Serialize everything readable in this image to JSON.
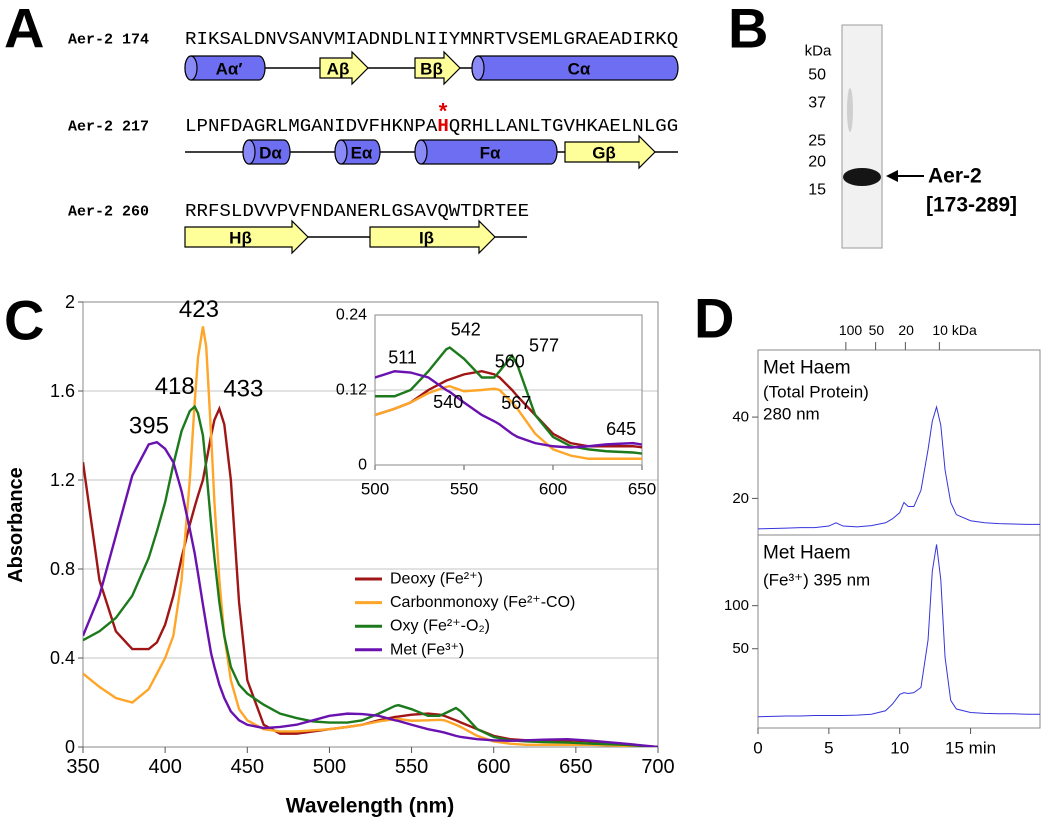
{
  "panels": [
    "A",
    "B",
    "C",
    "D"
  ],
  "sequence": {
    "rows": [
      {
        "name": "Aer-2 174",
        "residues": [
          "RIKSALDNVSANVMIADNDLNIIYMNRTVSEMLGRAEADIRKQ"
        ],
        "elements": [
          {
            "label": "Aα′",
            "kind": "helix"
          },
          {
            "label": "Aβ",
            "kind": "strand"
          },
          {
            "label": "Bβ",
            "kind": "strand"
          },
          {
            "label": "Cα",
            "kind": "helix"
          }
        ]
      },
      {
        "name": "Aer-2 217",
        "residues": [
          "LPNFDAGRLMGANIDVFHKNPA",
          "H",
          "QRHLLANLTGVHKAELNLGG"
        ],
        "mark": "*",
        "highlight_color": "#e00000",
        "elements": [
          {
            "label": "Dα",
            "kind": "helix"
          },
          {
            "label": "Eα",
            "kind": "helix"
          },
          {
            "label": "Fα",
            "kind": "helix"
          },
          {
            "label": "Gβ",
            "kind": "strand"
          }
        ]
      },
      {
        "name": "Aer-2 260",
        "residues": [
          "RRFSLDVVPVFNDANERLGSAVQWTDRTEE"
        ],
        "elements": [
          {
            "label": "Hβ",
            "kind": "strand"
          },
          {
            "label": "Iβ",
            "kind": "strand"
          }
        ]
      }
    ]
  },
  "gel": {
    "unit": "kDa",
    "markers": [
      50,
      37,
      25,
      20,
      15
    ],
    "band_name": "Aer-2",
    "band_range": "[173-289]"
  },
  "chart_data": [
    {
      "type": "line",
      "x_label": "Wavelength (nm)",
      "y_label": "Absorbance",
      "grid": true,
      "x": [
        350,
        360,
        370,
        380,
        390,
        395,
        400,
        405,
        410,
        415,
        418,
        420,
        423,
        425,
        428,
        430,
        433,
        436,
        440,
        445,
        450,
        460,
        470,
        480,
        490,
        500,
        511,
        520,
        530,
        540,
        542,
        550,
        560,
        567,
        570,
        577,
        580,
        590,
        600,
        610,
        620,
        630,
        645,
        660,
        680,
        700
      ],
      "series": [
        {
          "name": "Deoxy (Fe²⁺)",
          "color": "#a01515",
          "values": [
            1.28,
            0.75,
            0.52,
            0.44,
            0.44,
            0.47,
            0.55,
            0.68,
            0.85,
            1.0,
            1.08,
            1.13,
            1.2,
            1.28,
            1.4,
            1.47,
            1.52,
            1.45,
            1.2,
            0.65,
            0.3,
            0.1,
            0.06,
            0.06,
            0.07,
            0.08,
            0.09,
            0.1,
            0.12,
            0.135,
            0.137,
            0.145,
            0.15,
            0.145,
            0.14,
            0.12,
            0.11,
            0.08,
            0.05,
            0.035,
            0.03,
            0.03,
            0.03,
            0.025,
            0.01,
            0
          ]
        },
        {
          "name": "Carbonmonoxy (Fe²⁺-CO)",
          "color": "#ffa528",
          "values": [
            0.33,
            0.27,
            0.22,
            0.2,
            0.26,
            0.33,
            0.4,
            0.5,
            0.75,
            1.2,
            1.55,
            1.75,
            1.89,
            1.8,
            1.4,
            1.1,
            0.75,
            0.5,
            0.3,
            0.17,
            0.12,
            0.08,
            0.07,
            0.07,
            0.075,
            0.08,
            0.09,
            0.1,
            0.115,
            0.125,
            0.126,
            0.118,
            0.12,
            0.122,
            0.12,
            0.1,
            0.09,
            0.05,
            0.025,
            0.015,
            0.01,
            0.01,
            0.01,
            0.01,
            0.005,
            0
          ]
        },
        {
          "name": "Oxy (Fe²⁺-O₂)",
          "color": "#1c7a1c",
          "values": [
            0.48,
            0.52,
            0.58,
            0.68,
            0.85,
            0.97,
            1.1,
            1.27,
            1.42,
            1.51,
            1.53,
            1.5,
            1.4,
            1.25,
            1.0,
            0.85,
            0.65,
            0.5,
            0.36,
            0.28,
            0.24,
            0.19,
            0.15,
            0.13,
            0.115,
            0.11,
            0.11,
            0.12,
            0.15,
            0.185,
            0.188,
            0.17,
            0.14,
            0.14,
            0.15,
            0.175,
            0.16,
            0.08,
            0.045,
            0.03,
            0.025,
            0.022,
            0.02,
            0.015,
            0.01,
            0
          ]
        },
        {
          "name": "Met (Fe³⁺)",
          "color": "#6a12b0",
          "values": [
            0.5,
            0.68,
            0.95,
            1.22,
            1.36,
            1.37,
            1.34,
            1.28,
            1.15,
            0.98,
            0.87,
            0.78,
            0.64,
            0.55,
            0.42,
            0.36,
            0.28,
            0.22,
            0.16,
            0.12,
            0.1,
            0.085,
            0.09,
            0.1,
            0.12,
            0.14,
            0.15,
            0.148,
            0.14,
            0.12,
            0.117,
            0.1,
            0.08,
            0.07,
            0.065,
            0.05,
            0.045,
            0.035,
            0.03,
            0.028,
            0.03,
            0.033,
            0.035,
            0.028,
            0.015,
            0
          ]
        }
      ],
      "xlim": [
        350,
        700
      ],
      "xticks": [
        350,
        400,
        450,
        500,
        550,
        600,
        650,
        700
      ],
      "ylim": [
        0,
        2
      ],
      "yticks": [
        0,
        0.4,
        0.8,
        1.2,
        1.6,
        2
      ],
      "annotations": [
        {
          "x": 423,
          "series": 1
        },
        {
          "x": 418,
          "series": 2
        },
        {
          "x": 433,
          "series": 0
        },
        {
          "x": 395,
          "series": 3
        }
      ],
      "inset": {
        "xlim": [
          500,
          650
        ],
        "xticks": [
          500,
          550,
          600,
          650
        ],
        "ylim": [
          0,
          0.24
        ],
        "yticks": [
          0,
          0.12,
          0.24
        ],
        "annotations": [
          {
            "x": 511,
            "series": 3
          },
          {
            "x": 542,
            "series": 2
          },
          {
            "x": 560,
            "series": 0
          },
          {
            "x": 577,
            "series": 2
          },
          {
            "x": 540,
            "series": 1
          },
          {
            "x": 567,
            "series": 1
          },
          {
            "x": 645,
            "series": 3
          }
        ]
      }
    },
    {
      "type": "line",
      "texts": [
        "Met Haem",
        "(Total Protein)",
        "280 nm"
      ],
      "x": [
        0,
        1,
        2,
        3,
        4,
        5,
        5.5,
        6,
        7,
        8,
        9,
        9.5,
        10,
        10.3,
        10.6,
        11,
        11.5,
        12,
        12.3,
        12.6,
        12.9,
        13.2,
        13.6,
        14,
        15,
        16,
        17,
        18,
        19,
        19.9
      ],
      "series": [
        {
          "color": "#3535dd",
          "values": [
            12.5,
            12.6,
            12.7,
            12.8,
            12.8,
            13.2,
            14.0,
            13.2,
            13.0,
            13.3,
            14,
            15,
            16.5,
            19,
            18,
            18,
            22,
            32,
            39,
            42.5,
            38,
            27,
            19,
            16,
            14.5,
            14,
            13.8,
            13.7,
            13.6,
            13.6
          ]
        }
      ],
      "xlim": [
        0,
        19.9
      ],
      "ylim": [
        11,
        56.5
      ],
      "yticks": [
        20,
        40
      ],
      "x2ticks": [
        {
          "value": 6.2,
          "label": "100"
        },
        {
          "value": 8.3,
          "label": "50"
        },
        {
          "value": 10.4,
          "label": "20"
        },
        {
          "value": 12.8,
          "label": "10 kDa"
        }
      ]
    },
    {
      "type": "line",
      "texts": [
        "Met Haem",
        "(Fe³⁺) 395 nm"
      ],
      "x": [
        0,
        1,
        2,
        3,
        4,
        5,
        5.5,
        6,
        7,
        8,
        9,
        9.5,
        10,
        10.3,
        10.6,
        11,
        11.5,
        12,
        12.3,
        12.6,
        12.9,
        13.2,
        13.6,
        14,
        15,
        16,
        17,
        18,
        19,
        19.9
      ],
      "series": [
        {
          "color": "#3535dd",
          "values": [
            -29,
            -28.5,
            -28,
            -28,
            -27.5,
            -27.5,
            -27.5,
            -27.5,
            -27,
            -26,
            -22,
            -14,
            -3,
            -1,
            -2,
            -1,
            5,
            60,
            140,
            171,
            130,
            40,
            -10,
            -20,
            -24,
            -25,
            -25.5,
            -25.5,
            -26,
            -26
          ]
        }
      ],
      "xlim": [
        0,
        19.9
      ],
      "ylim": [
        -42,
        182
      ],
      "yticks": [
        50,
        100
      ],
      "xticks": [
        0,
        5,
        10,
        {
          "value": 15,
          "label": "15 min"
        }
      ]
    }
  ]
}
